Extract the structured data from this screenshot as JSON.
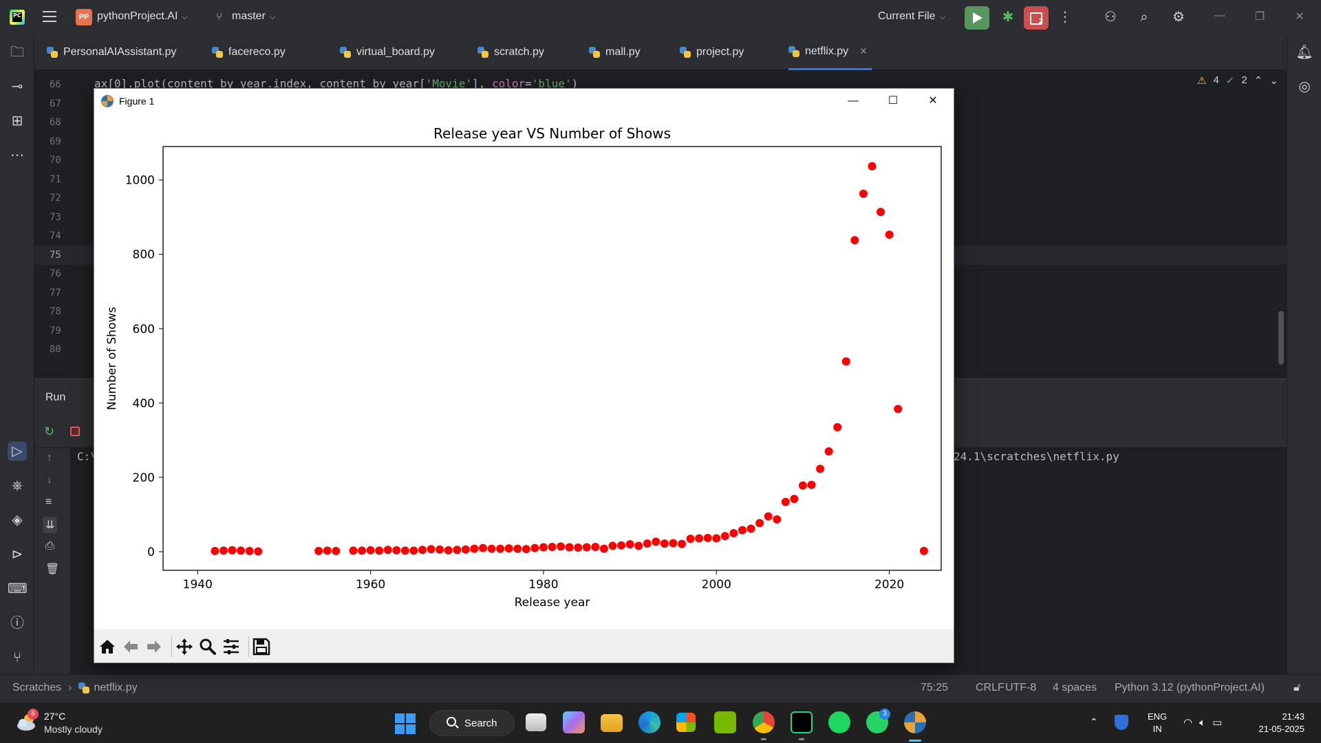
{
  "titlebar": {
    "logo": "PC",
    "project_badge": "PP",
    "project_name": "pythonProject.AI",
    "branch": "master",
    "run_config": "Current File",
    "stop_count": "2",
    "icons": [
      "hamburger-icon",
      "branch-icon",
      "run-icon",
      "debug-icon",
      "stop-icon",
      "more-icon",
      "add-user-icon",
      "search-icon",
      "gear-icon",
      "minimize-icon",
      "restore-icon",
      "close-icon"
    ]
  },
  "tabs": [
    {
      "label": "PersonalAIAssistant.py",
      "active": false
    },
    {
      "label": "facereco.py",
      "active": false
    },
    {
      "label": "virtual_board.py",
      "active": false
    },
    {
      "label": "scratch.py",
      "active": false
    },
    {
      "label": "mall.py",
      "active": false
    },
    {
      "label": "project.py",
      "active": false
    },
    {
      "label": "netflix.py",
      "active": true
    }
  ],
  "editor": {
    "line_numbers": [
      "66",
      "67",
      "68",
      "69",
      "70",
      "71",
      "72",
      "73",
      "74",
      "75",
      "76",
      "77",
      "78",
      "79",
      "80"
    ],
    "current_line": "75",
    "code_line_66": {
      "prefix": "ax[0].plot(content_by_year.index, content_by_year[",
      "string1": "'Movie'",
      "middle": "], ",
      "kw": "color",
      "eq": "=",
      "string2": "'blue'",
      "suffix": ")"
    },
    "warnings": "4",
    "checks": "2"
  },
  "run_panel": {
    "title": "Run",
    "console_path_start": "C:\\",
    "console_path_end": "24.1\\scratches\\netflix.py"
  },
  "statusbar": {
    "breadcrumb_root": "Scratches",
    "breadcrumb_file": "netflix.py",
    "position": "75:25",
    "line_ending": "CRLF",
    "encoding": "UTF-8",
    "indent": "4 spaces",
    "interpreter": "Python 3.12 (pythonProject.AI)"
  },
  "figure_window": {
    "title": "Figure 1",
    "toolbar_buttons": [
      "home-icon",
      "back-arrow-icon",
      "forward-arrow-icon",
      "pan-icon",
      "zoom-icon",
      "configure-subplots-icon",
      "save-icon"
    ]
  },
  "chart_data": {
    "type": "scatter",
    "title": "Release year VS Number of Shows",
    "xlabel": "Release year",
    "ylabel": "Number of Shows",
    "xlim": [
      1936,
      2026
    ],
    "ylim": [
      -50,
      1090
    ],
    "xticks": [
      1940,
      1960,
      1980,
      2000,
      2020
    ],
    "yticks": [
      0,
      200,
      400,
      600,
      800,
      1000
    ],
    "color": "#ff0000",
    "x": [
      1942,
      1943,
      1944,
      1945,
      1946,
      1947,
      1954,
      1955,
      1956,
      1958,
      1959,
      1960,
      1961,
      1962,
      1963,
      1964,
      1965,
      1966,
      1967,
      1968,
      1969,
      1970,
      1971,
      1972,
      1973,
      1974,
      1975,
      1976,
      1977,
      1978,
      1979,
      1980,
      1981,
      1982,
      1983,
      1984,
      1985,
      1986,
      1987,
      1988,
      1989,
      1990,
      1991,
      1992,
      1993,
      1994,
      1995,
      1996,
      1997,
      1998,
      1999,
      2000,
      2001,
      2002,
      2003,
      2004,
      2005,
      2006,
      2007,
      2008,
      2009,
      2010,
      2011,
      2012,
      2013,
      2014,
      2015,
      2016,
      2017,
      2018,
      2019,
      2020,
      2021,
      2024
    ],
    "y": [
      2,
      3,
      4,
      3,
      2,
      1,
      2,
      3,
      2,
      3,
      3,
      4,
      3,
      5,
      4,
      3,
      3,
      5,
      7,
      6,
      4,
      5,
      6,
      8,
      10,
      8,
      8,
      9,
      8,
      7,
      10,
      12,
      13,
      14,
      12,
      11,
      12,
      13,
      8,
      16,
      17,
      20,
      16,
      22,
      27,
      22,
      23,
      21,
      35,
      36,
      37,
      36,
      42,
      50,
      58,
      62,
      77,
      95,
      87,
      134,
      142,
      178,
      180,
      223,
      270,
      335,
      512,
      838,
      963,
      1037,
      914,
      853,
      384,
      2
    ]
  },
  "taskbar": {
    "weather_badge": "8",
    "weather_temp": "27°C",
    "weather_desc": "Mostly cloudy",
    "search_label": "Search",
    "whatsapp_badge": "3",
    "lang_line1": "ENG",
    "lang_line2": "IN",
    "time": "21:43",
    "date": "21-05-2025"
  }
}
